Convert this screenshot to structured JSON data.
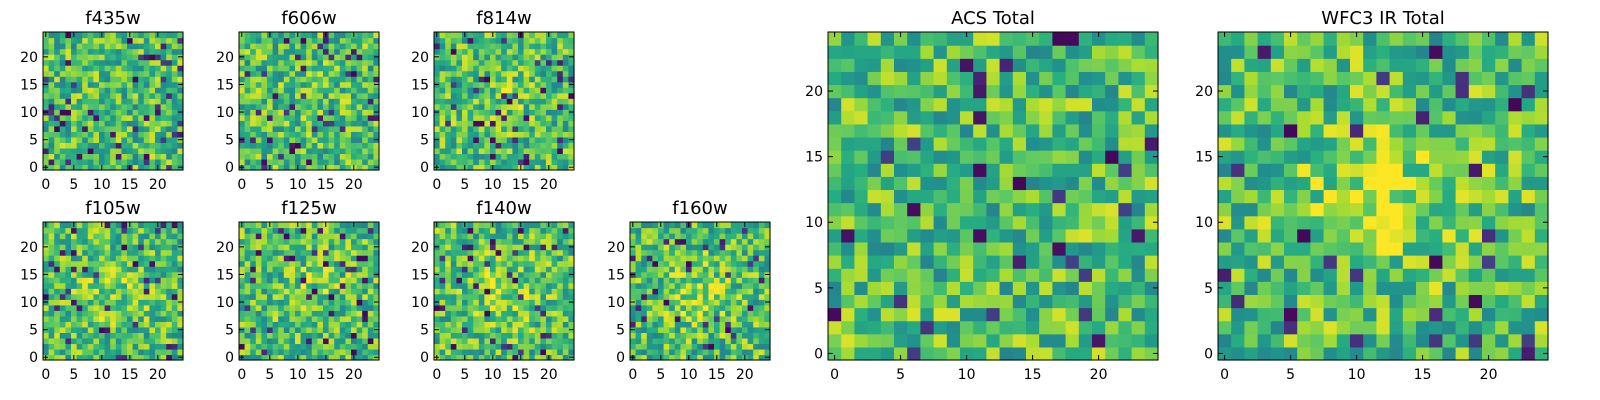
{
  "chart_data": {
    "type": "heatmap",
    "colormap": "viridis",
    "grid": false,
    "panels": [
      {
        "title": "f435w",
        "xlim": [
          0,
          25
        ],
        "ylim": [
          0,
          25
        ],
        "xticks": [
          0,
          5,
          10,
          15,
          20
        ],
        "yticks": [
          0,
          5,
          10,
          15,
          20
        ],
        "seed": 11,
        "blob": 0.0,
        "ratio": 0.08
      },
      {
        "title": "f606w",
        "xlim": [
          0,
          25
        ],
        "ylim": [
          0,
          25
        ],
        "xticks": [
          0,
          5,
          10,
          15,
          20
        ],
        "yticks": [
          0,
          5,
          10,
          15,
          20
        ],
        "seed": 23,
        "blob": 0.1,
        "ratio": 0.06
      },
      {
        "title": "f814w",
        "xlim": [
          0,
          25
        ],
        "ylim": [
          0,
          25
        ],
        "xticks": [
          0,
          5,
          10,
          15,
          20
        ],
        "yticks": [
          0,
          5,
          10,
          15,
          20
        ],
        "seed": 37,
        "blob": 0.2,
        "ratio": 0.06
      },
      {
        "title": "f105w",
        "xlim": [
          0,
          25
        ],
        "ylim": [
          0,
          25
        ],
        "xticks": [
          0,
          5,
          10,
          15,
          20
        ],
        "yticks": [
          0,
          5,
          10,
          15,
          20
        ],
        "seed": 41,
        "blob": 0.3,
        "ratio": 0.06
      },
      {
        "title": "f125w",
        "xlim": [
          0,
          25
        ],
        "ylim": [
          0,
          25
        ],
        "xticks": [
          0,
          5,
          10,
          15,
          20
        ],
        "yticks": [
          0,
          5,
          10,
          15,
          20
        ],
        "seed": 53,
        "blob": 0.25,
        "ratio": 0.06
      },
      {
        "title": "f140w",
        "xlim": [
          0,
          25
        ],
        "ylim": [
          0,
          25
        ],
        "xticks": [
          0,
          5,
          10,
          15,
          20
        ],
        "yticks": [
          0,
          5,
          10,
          15,
          20
        ],
        "seed": 67,
        "blob": 0.45,
        "ratio": 0.05
      },
      {
        "title": "f160w",
        "xlim": [
          0,
          25
        ],
        "ylim": [
          0,
          25
        ],
        "xticks": [
          0,
          5,
          10,
          15,
          20
        ],
        "yticks": [
          0,
          5,
          10,
          15,
          20
        ],
        "seed": 79,
        "blob": 0.4,
        "ratio": 0.06
      },
      {
        "title": "ACS Total",
        "xlim": [
          0,
          25
        ],
        "ylim": [
          0,
          25
        ],
        "xticks": [
          0,
          5,
          10,
          15,
          20
        ],
        "yticks": [
          0,
          5,
          10,
          15,
          20
        ],
        "seed": 97,
        "blob": 0.0,
        "ratio": 0.05
      },
      {
        "title": "WFC3 IR Total",
        "xlim": [
          0,
          25
        ],
        "ylim": [
          0,
          25
        ],
        "xticks": [
          0,
          5,
          10,
          15,
          20
        ],
        "yticks": [
          0,
          5,
          10,
          15,
          20
        ],
        "seed": 131,
        "blob": 0.6,
        "ratio": 0.05
      }
    ]
  }
}
